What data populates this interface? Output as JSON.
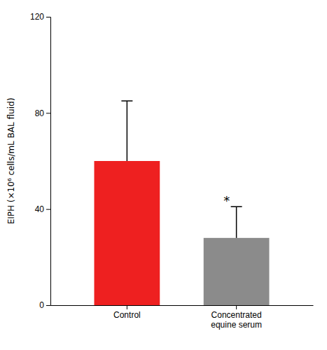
{
  "chart_data": {
    "type": "bar",
    "categories": [
      "Control",
      "Concentrated\nequine serum"
    ],
    "values": [
      60,
      28
    ],
    "errors_up": [
      25,
      13
    ],
    "colors": [
      "#EE2020",
      "#8B8B8B"
    ],
    "ylabel": "EIPH (×10⁶ cells/mL BAL fluid)",
    "ylim": [
      0,
      120
    ],
    "yticks": [
      0,
      40,
      80,
      120
    ],
    "grid": false,
    "annotations": [
      {
        "text": "*",
        "x": "Concentrated\nequine serum"
      }
    ]
  }
}
